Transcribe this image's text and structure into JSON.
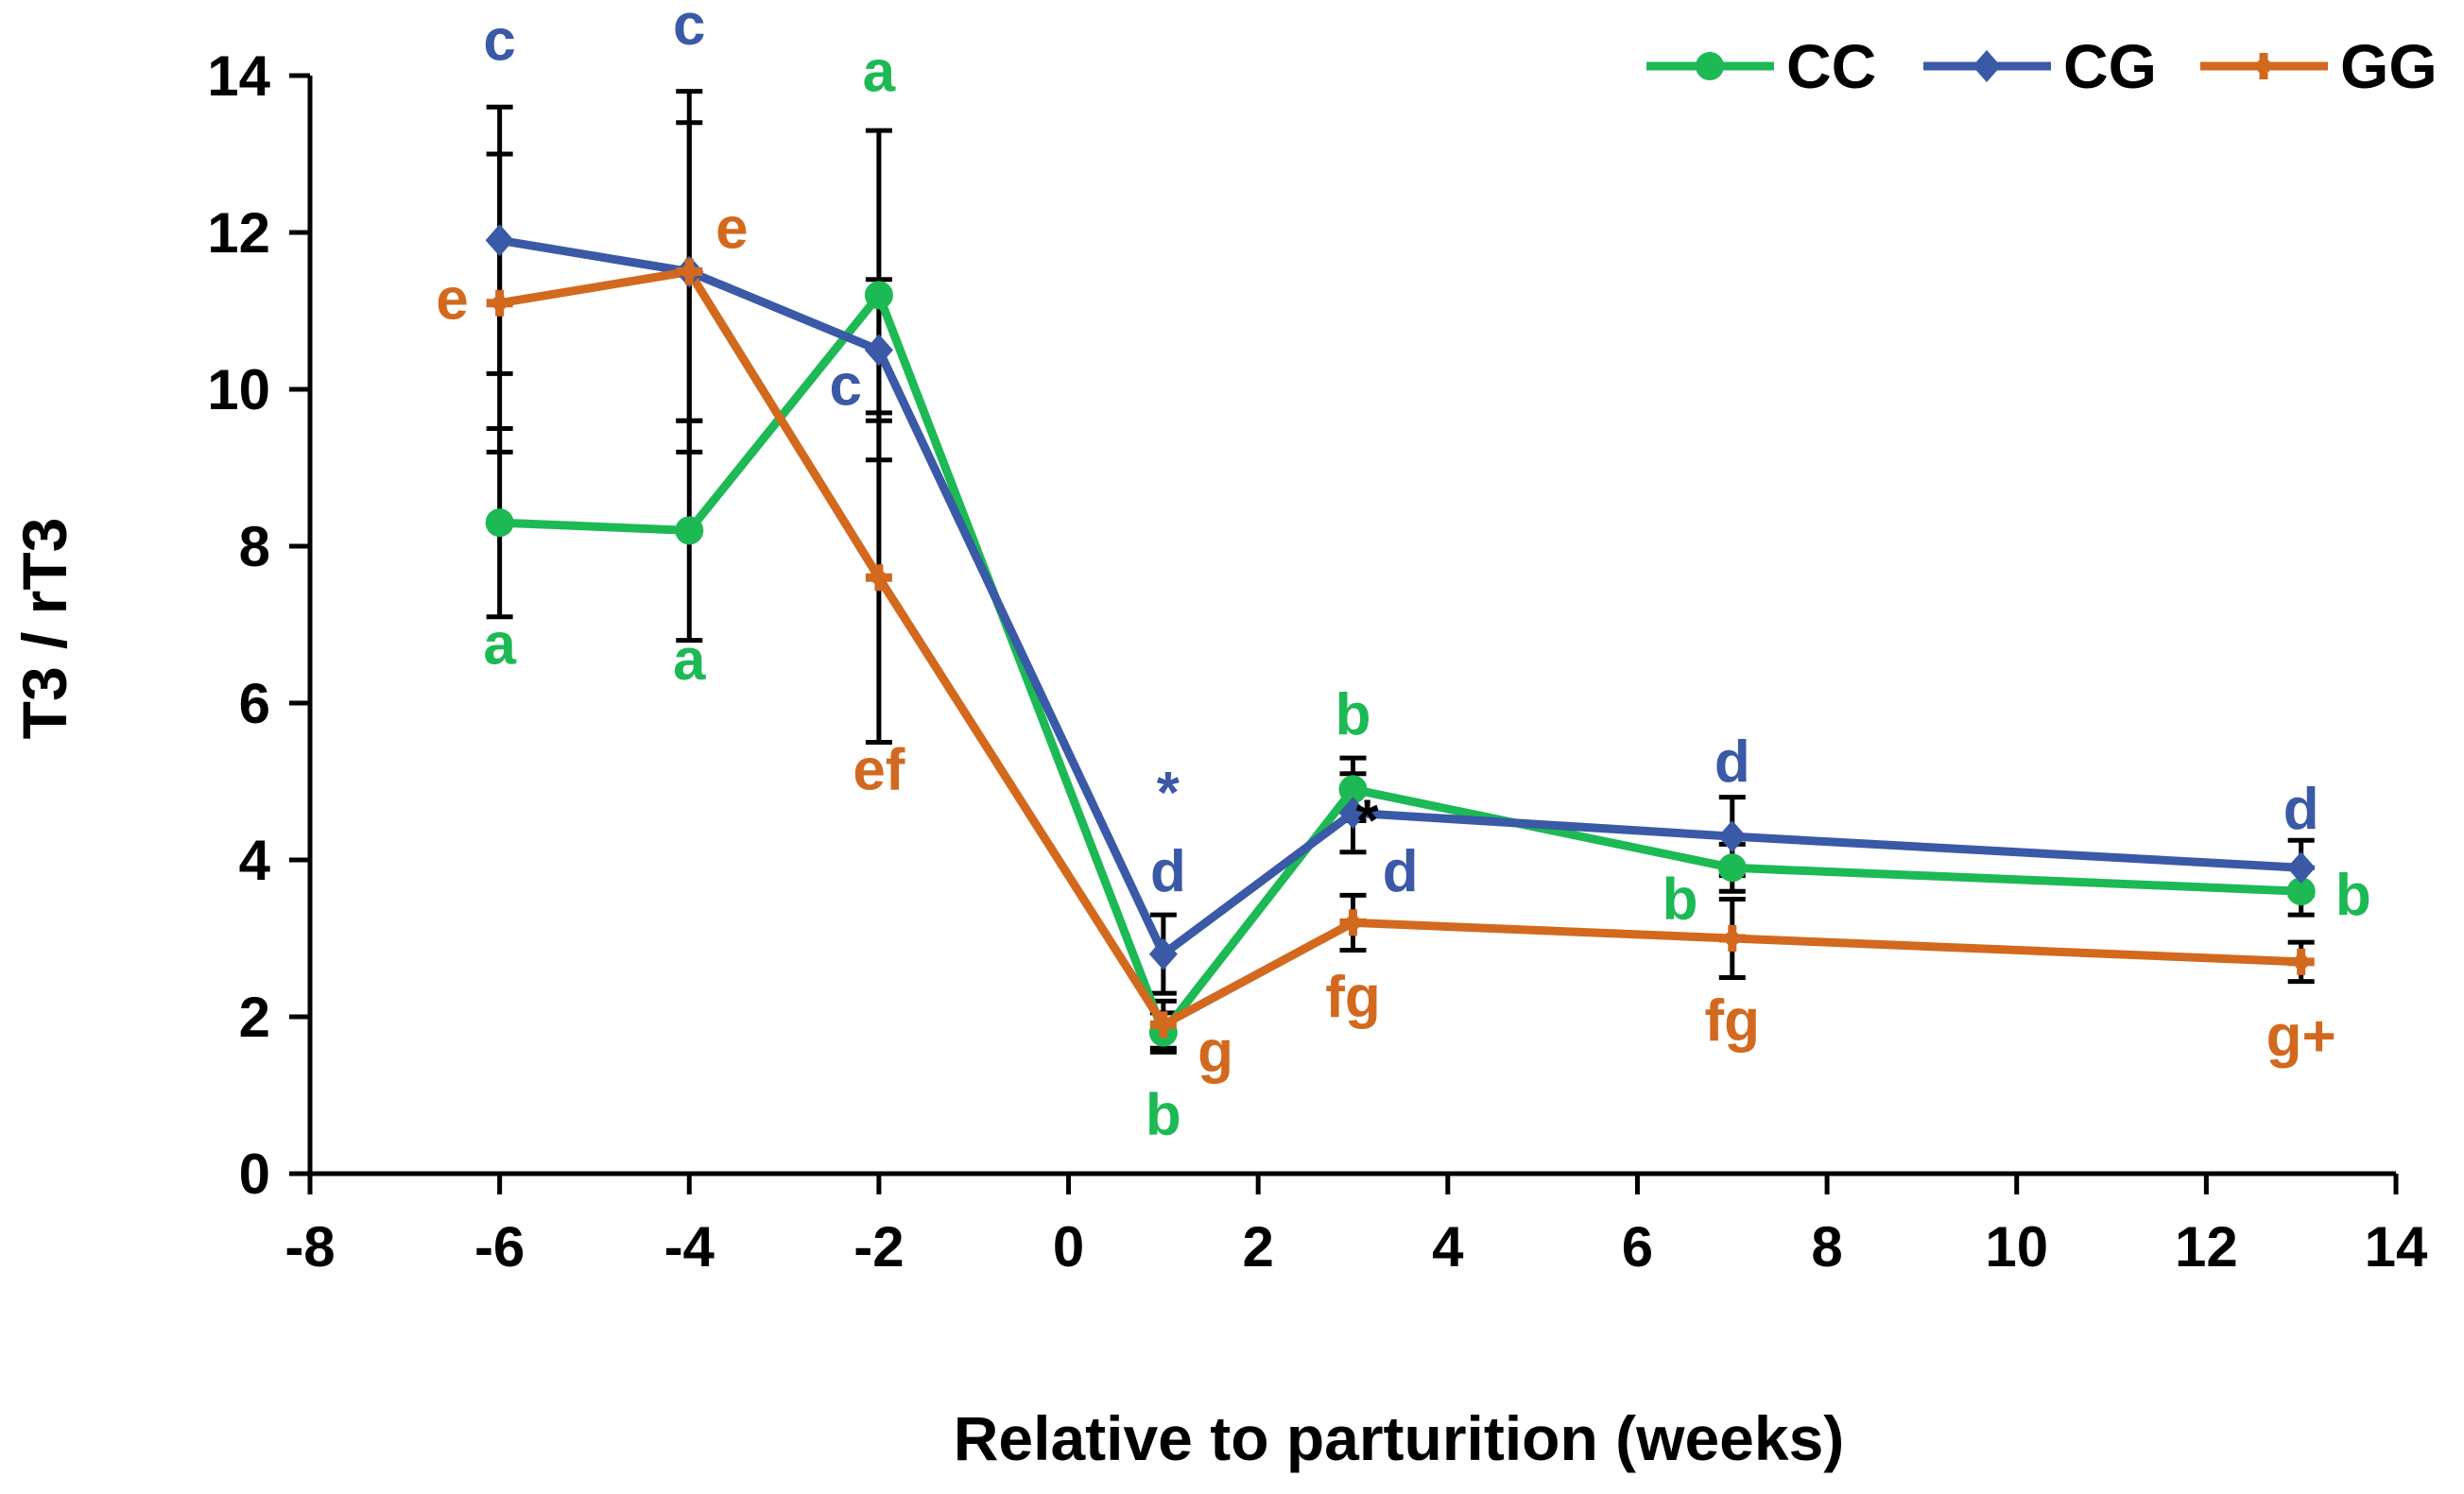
{
  "chart_data": {
    "type": "line",
    "title": "",
    "xlabel": "Relative to parturition (weeks)",
    "ylabel": "T3 / rT3",
    "xlim": [
      -8,
      14
    ],
    "ylim": [
      0,
      14
    ],
    "xticks": [
      "-8",
      "-6",
      "-4",
      "-2",
      "0",
      "2",
      "4",
      "6",
      "8",
      "10",
      "12",
      "14"
    ],
    "yticks": [
      "0",
      "2",
      "4",
      "6",
      "8",
      "10",
      "12",
      "14"
    ],
    "legend_position": "top-right",
    "x": [
      -6,
      -4,
      -2,
      1,
      3,
      7,
      13
    ],
    "series": [
      {
        "name": "CC",
        "color": "#1db954",
        "marker": "circle",
        "values": [
          8.3,
          8.2,
          11.2,
          1.8,
          4.9,
          3.9,
          3.6
        ],
        "err": [
          1.2,
          1.4,
          2.1,
          0.25,
          0.4,
          0.3,
          0.3
        ]
      },
      {
        "name": "CG",
        "color": "#3a59a6",
        "marker": "diamond",
        "values": [
          11.9,
          11.5,
          10.5,
          2.8,
          4.6,
          4.3,
          3.9
        ],
        "err": [
          1.7,
          2.3,
          0.9,
          0.5,
          0.5,
          0.5,
          0.35
        ]
      },
      {
        "name": "GG",
        "color": "#d2691e",
        "marker": "star",
        "values": [
          11.1,
          11.5,
          7.6,
          1.9,
          3.2,
          3.0,
          2.7
        ],
        "err": [
          1.9,
          1.9,
          2.1,
          0.3,
          0.35,
          0.5,
          0.25
        ]
      }
    ],
    "annotations": [
      {
        "text": "c",
        "series": "CG",
        "x": -6,
        "y": 14.2
      },
      {
        "text": "c",
        "series": "CG",
        "x": -4,
        "y": 14.4
      },
      {
        "text": "a",
        "series": "CC",
        "x": -2,
        "y": 13.8
      },
      {
        "text": "e",
        "series": "GG",
        "x": -6.5,
        "y": 10.9
      },
      {
        "text": "e",
        "series": "GG",
        "x": -3.55,
        "y": 11.8
      },
      {
        "text": "c",
        "series": "CG",
        "x": -2.35,
        "y": 9.8
      },
      {
        "text": "a",
        "series": "CC",
        "x": -6,
        "y": 6.5
      },
      {
        "text": "a",
        "series": "CC",
        "x": -4,
        "y": 6.3
      },
      {
        "text": "ef",
        "series": "GG",
        "x": -2,
        "y": 4.9
      },
      {
        "text": "*",
        "series": "CG",
        "x": 1.05,
        "y": 4.6
      },
      {
        "text": "d",
        "series": "CG",
        "x": 1.05,
        "y": 3.6
      },
      {
        "text": "g",
        "series": "GG",
        "x": 1.55,
        "y": 1.3
      },
      {
        "text": "b",
        "series": "CC",
        "x": 1.0,
        "y": 0.5
      },
      {
        "text": "b",
        "series": "CC",
        "x": 3.0,
        "y": 5.6
      },
      {
        "text": "*",
        "series": "CC",
        "x": 3.15,
        "y": 4.25
      },
      {
        "text": "d",
        "series": "CG",
        "x": 3.5,
        "y": 3.6
      },
      {
        "text": "fg",
        "series": "GG",
        "x": 3.0,
        "y": 2.0
      },
      {
        "text": "d",
        "series": "CG",
        "x": 7.0,
        "y": 5.0
      },
      {
        "text": "b",
        "series": "CC",
        "x": 6.45,
        "y": 3.25
      },
      {
        "text": "fg",
        "series": "GG",
        "x": 7.0,
        "y": 1.7
      },
      {
        "text": "d",
        "series": "CG",
        "x": 13.0,
        "y": 4.4
      },
      {
        "text": "b",
        "series": "CC",
        "x": 13.55,
        "y": 3.3
      },
      {
        "text": "g+",
        "series": "GG",
        "x": 13.0,
        "y": 1.5
      }
    ]
  }
}
